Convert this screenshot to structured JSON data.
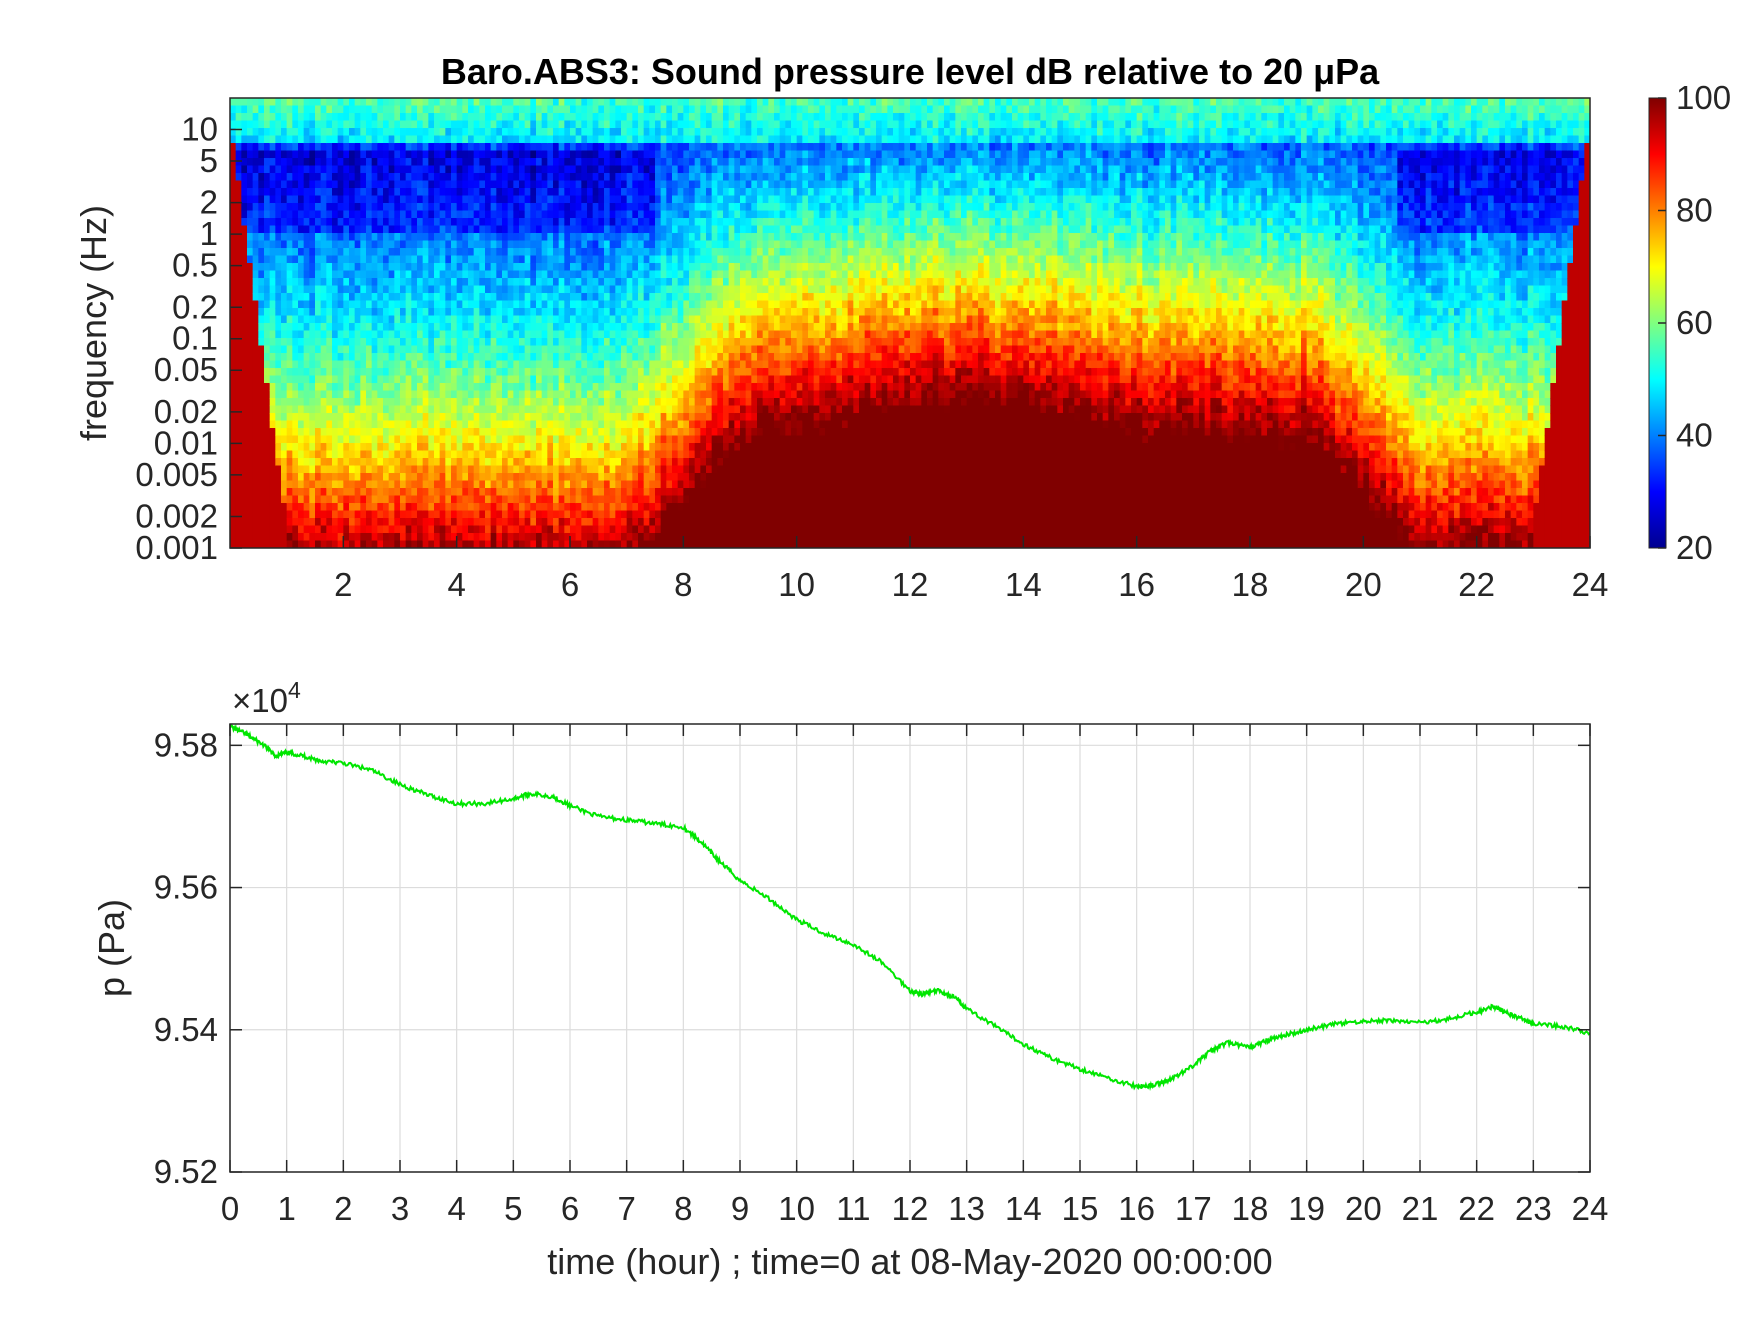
{
  "chart_data": [
    {
      "type": "heatmap",
      "title": "Baro.ABS3: Sound pressure level dB relative to 20 μPa",
      "xlabel": "",
      "ylabel": "frequency (Hz)",
      "xlim": [
        0,
        24
      ],
      "x_ticks": [
        "2",
        "4",
        "6",
        "8",
        "10",
        "12",
        "14",
        "16",
        "18",
        "20",
        "22",
        "24"
      ],
      "y_scale": "log",
      "ylim": [
        0.001,
        20
      ],
      "y_ticks": [
        "10",
        "5",
        "2",
        "1",
        "0.5",
        "0.2",
        "0.1",
        "0.05",
        "0.02",
        "0.01",
        "0.005",
        "0.002",
        "0.001"
      ],
      "colormap": "jet",
      "colorbar": {
        "range": [
          20,
          100
        ],
        "ticks": [
          "100",
          "80",
          "60",
          "40",
          "20"
        ]
      },
      "colors": {
        "dark_blue": "#00008f",
        "blue": "#0050ff",
        "cyan": "#00ffff",
        "yellow": "#ffff00",
        "red": "#ff0000",
        "dark_red": "#800000"
      }
    },
    {
      "type": "line",
      "exponent_label": "×10",
      "exponent_power": "4",
      "xlabel": "time (hour) ; time=0 at 08-May-2020 00:00:00",
      "ylabel": "p (Pa)",
      "xlim": [
        0,
        24
      ],
      "ylim": [
        9.52,
        9.583
      ],
      "x_ticks": [
        "0",
        "1",
        "2",
        "3",
        "4",
        "5",
        "6",
        "7",
        "8",
        "9",
        "10",
        "11",
        "12",
        "13",
        "14",
        "15",
        "16",
        "17",
        "18",
        "19",
        "20",
        "21",
        "22",
        "23",
        "24"
      ],
      "y_ticks": [
        "9.58",
        "9.56",
        "9.54",
        "9.52"
      ],
      "grid": true,
      "line_color": "#00e600",
      "series": [
        {
          "x": [
            0,
            0.3,
            0.6,
            0.8,
            1.0,
            1.3,
            1.6,
            2.0,
            2.5,
            3.0,
            3.5,
            4.0,
            4.5,
            5.0,
            5.3,
            5.7,
            6.0,
            6.5,
            7.0,
            7.5,
            8.0,
            8.3,
            8.6,
            9.0,
            9.5,
            10.0,
            10.5,
            11.0,
            11.5,
            12.0,
            12.2,
            12.5,
            12.8,
            13.0,
            13.5,
            14.0,
            14.5,
            15.0,
            15.5,
            16.0,
            16.3,
            16.6,
            17.0,
            17.3,
            17.6,
            18.0,
            18.3,
            18.6,
            19.0,
            19.5,
            20.0,
            20.5,
            21.0,
            21.5,
            22.0,
            22.3,
            22.5,
            22.8,
            23.0,
            23.5,
            24.0
          ],
          "y": [
            9.5827,
            9.5815,
            9.58,
            9.5785,
            9.579,
            9.5785,
            9.5778,
            9.5775,
            9.5765,
            9.5745,
            9.573,
            9.5718,
            9.5718,
            9.5725,
            9.5732,
            9.5728,
            9.5715,
            9.57,
            9.5695,
            9.569,
            9.5685,
            9.5665,
            9.564,
            9.561,
            9.5585,
            9.5555,
            9.5535,
            9.552,
            9.5495,
            9.5455,
            9.545,
            9.5455,
            9.5445,
            9.543,
            9.5405,
            9.538,
            9.536,
            9.5345,
            9.5332,
            9.532,
            9.5322,
            9.533,
            9.535,
            9.537,
            9.5382,
            9.5375,
            9.5385,
            9.5392,
            9.54,
            9.5408,
            9.5412,
            9.5413,
            9.541,
            9.5415,
            9.5425,
            9.5433,
            9.5425,
            9.5415,
            9.5408,
            9.5405,
            9.5395
          ]
        }
      ]
    }
  ]
}
